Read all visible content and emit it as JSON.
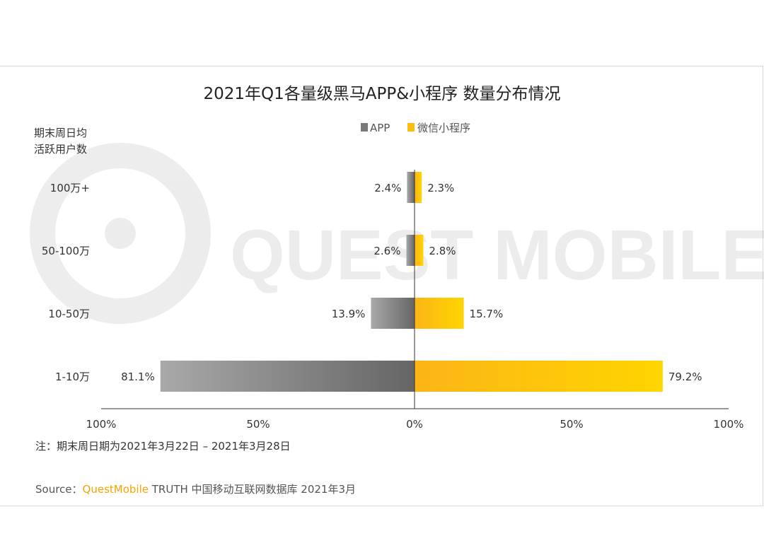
{
  "chart_data": {
    "type": "bar",
    "orientation": "horizontal-diverging",
    "title": "2021年Q1各量级黑马APP&小程序 数量分布情况",
    "ylabel": [
      "期末周日均",
      "活跃用户数"
    ],
    "categories": [
      "100万+",
      "50-100万",
      "10-50万",
      "1-10万"
    ],
    "series": [
      {
        "name": "APP",
        "values": [
          2.4,
          2.6,
          13.9,
          81.1
        ],
        "labels": [
          "2.4%",
          "2.6%",
          "13.9%",
          "81.1%"
        ],
        "color": "#7a7a7a",
        "direction": "left"
      },
      {
        "name": "微信小程序",
        "values": [
          2.3,
          2.8,
          15.7,
          79.2
        ],
        "labels": [
          "2.3%",
          "2.8%",
          "15.7%",
          "79.2%"
        ],
        "color": "#fbbd10",
        "direction": "right"
      }
    ],
    "xlim": [
      -100,
      100
    ],
    "x_tick_labels": [
      "100%",
      "50%",
      "0%",
      "50%",
      "100%"
    ],
    "legend_position": "top-center",
    "grid": false
  },
  "watermark": "QUEST MOBILE",
  "note": "注：期末周日期为2021年3月22日 – 2021年3月28日",
  "source": {
    "prefix": "Source：",
    "brand": "QuestMobile",
    "rest": " TRUTH 中国移动互联网数据库 2021年3月"
  },
  "colors": {
    "app_dark": "#6a6a6a",
    "app_light": "#a8a8a8",
    "mini_dark": "#fbb516",
    "mini_light": "#ffd400",
    "brand": "#f5a300"
  }
}
